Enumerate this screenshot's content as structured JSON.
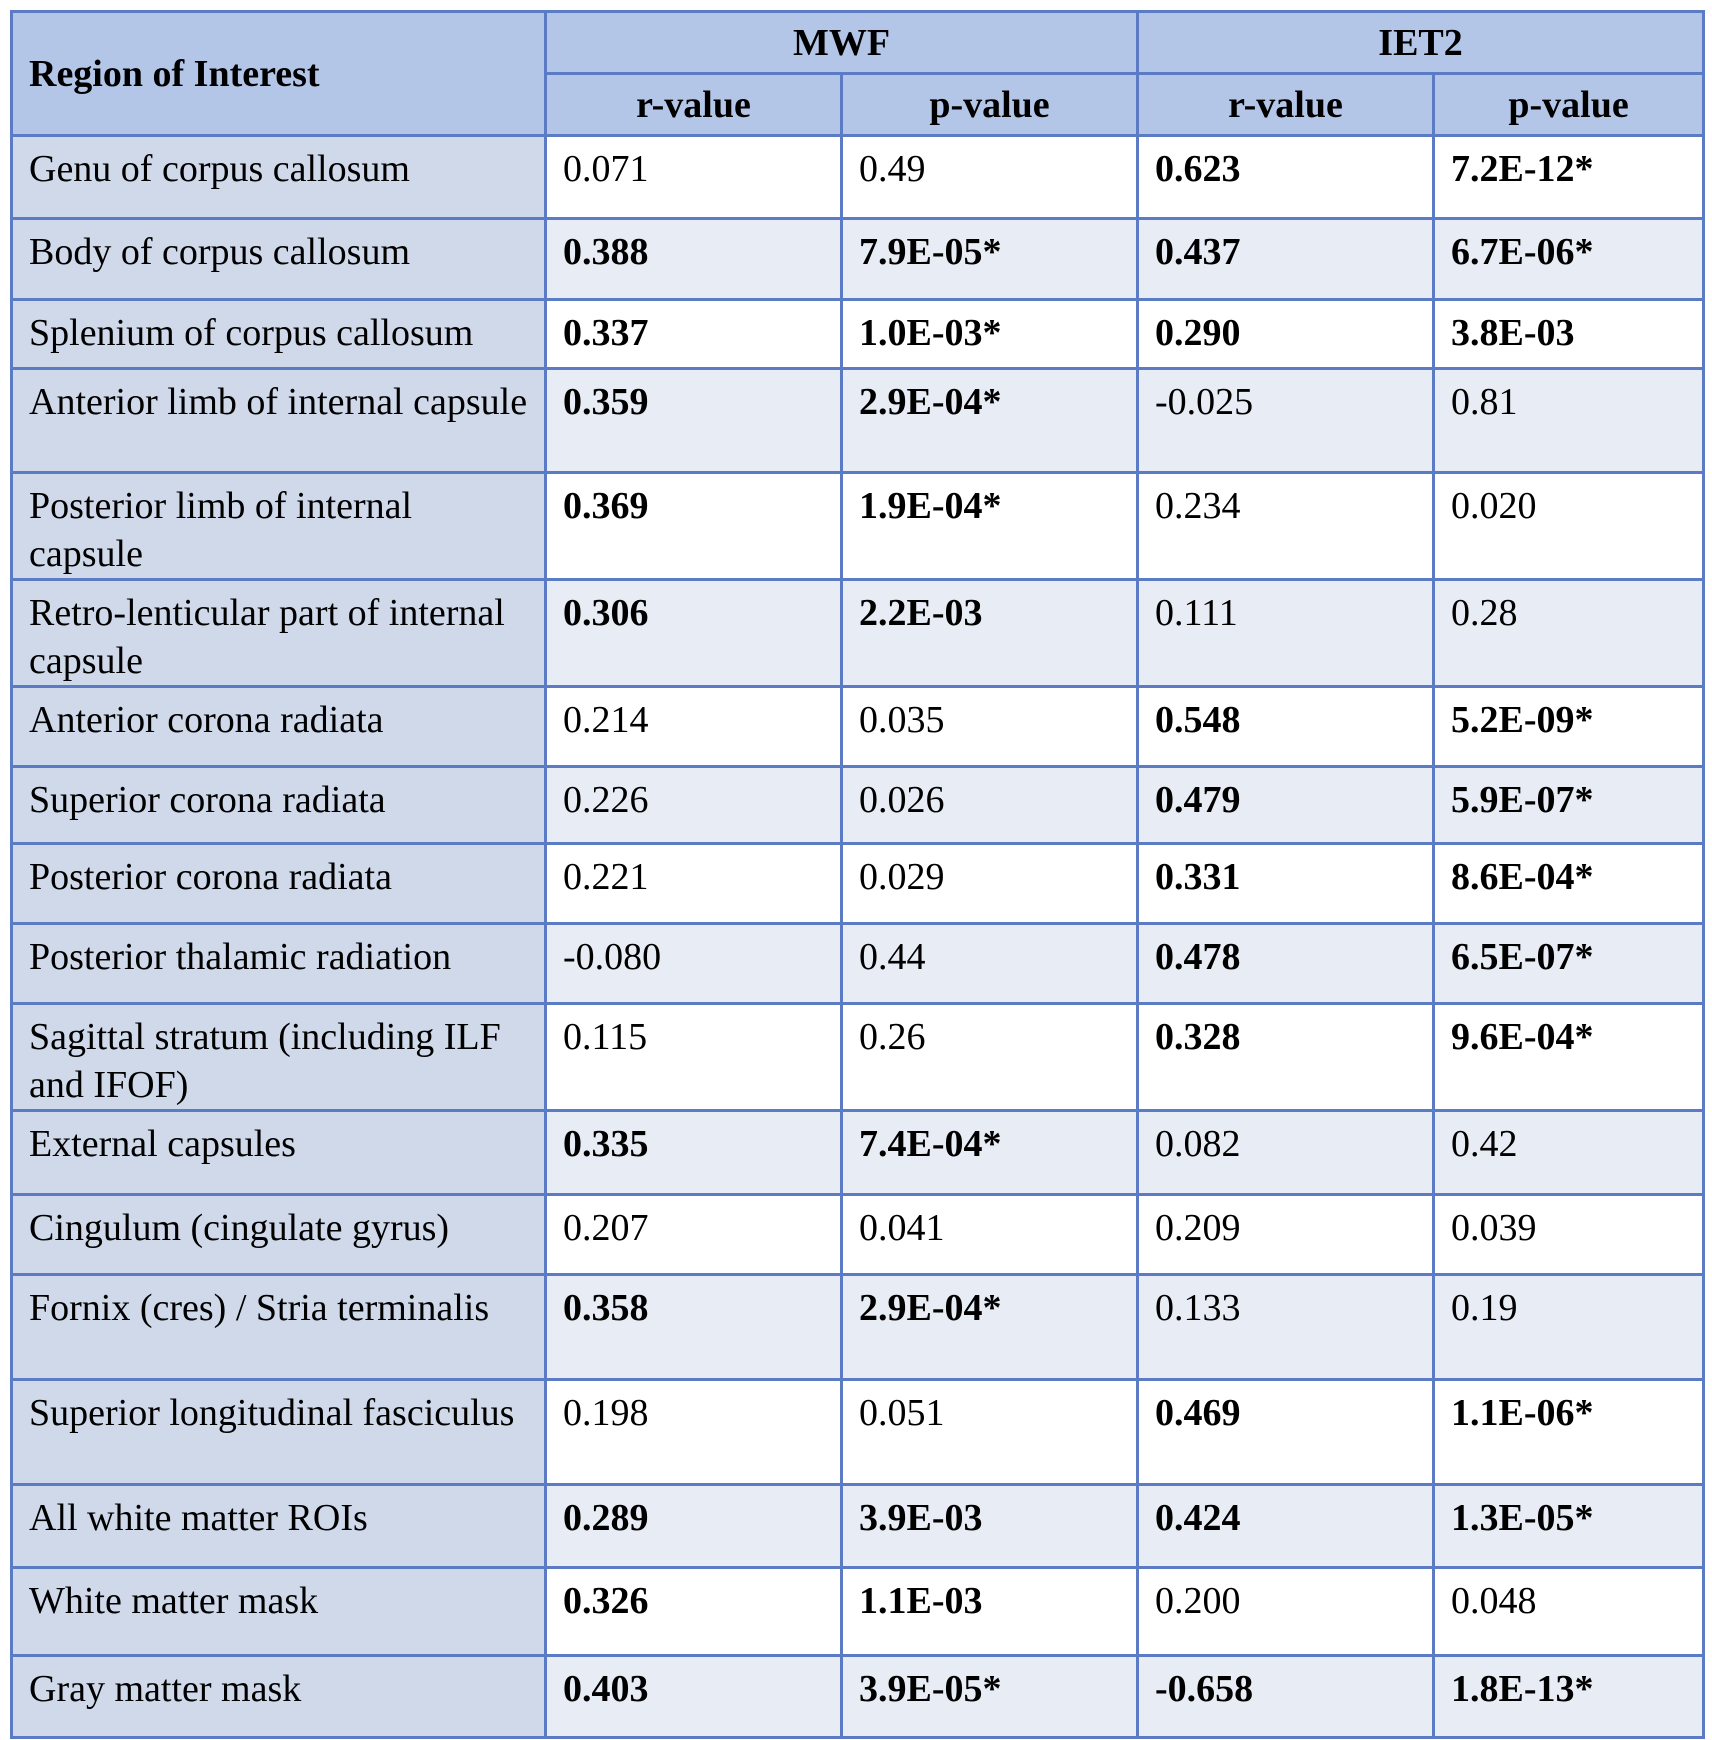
{
  "header": {
    "roi_label": "Region of Interest",
    "groups": [
      "MWF",
      "IET2"
    ],
    "subcols": [
      "r-value",
      "p-value",
      "r-value",
      "p-value"
    ]
  },
  "rows": [
    {
      "roi": "Genu of corpus callosum",
      "mwf_r": "0.071",
      "mwf_p": "0.49",
      "iet2_r": "0.623",
      "iet2_p": "7.2E-12*",
      "bold": [
        false,
        false,
        true,
        true
      ]
    },
    {
      "roi": "Body of corpus callosum",
      "mwf_r": "0.388",
      "mwf_p": "7.9E-05*",
      "iet2_r": "0.437",
      "iet2_p": "6.7E-06*",
      "bold": [
        true,
        true,
        true,
        true
      ]
    },
    {
      "roi": "Splenium of corpus callosum",
      "mwf_r": "0.337",
      "mwf_p": "1.0E-03*",
      "iet2_r": "0.290",
      "iet2_p": "3.8E-03",
      "bold": [
        true,
        true,
        true,
        true
      ]
    },
    {
      "roi": "Anterior limb of internal capsule",
      "mwf_r": "0.359",
      "mwf_p": "2.9E-04*",
      "iet2_r": "-0.025",
      "iet2_p": "0.81",
      "bold": [
        true,
        true,
        false,
        false
      ]
    },
    {
      "roi": "Posterior limb of internal capsule",
      "mwf_r": "0.369",
      "mwf_p": "1.9E-04*",
      "iet2_r": "0.234",
      "iet2_p": "0.020",
      "bold": [
        true,
        true,
        false,
        false
      ]
    },
    {
      "roi": "Retro-lenticular part of internal capsule",
      "mwf_r": "0.306",
      "mwf_p": "2.2E-03",
      "iet2_r": "0.111",
      "iet2_p": "0.28",
      "bold": [
        true,
        true,
        false,
        false
      ]
    },
    {
      "roi": "Anterior corona radiata",
      "mwf_r": "0.214",
      "mwf_p": "0.035",
      "iet2_r": "0.548",
      "iet2_p": "5.2E-09*",
      "bold": [
        false,
        false,
        true,
        true
      ]
    },
    {
      "roi": "Superior corona radiata",
      "mwf_r": "0.226",
      "mwf_p": "0.026",
      "iet2_r": "0.479",
      "iet2_p": "5.9E-07*",
      "bold": [
        false,
        false,
        true,
        true
      ]
    },
    {
      "roi": "Posterior corona radiata",
      "mwf_r": "0.221",
      "mwf_p": "0.029",
      "iet2_r": "0.331",
      "iet2_p": "8.6E-04*",
      "bold": [
        false,
        false,
        true,
        true
      ]
    },
    {
      "roi": "Posterior thalamic radiation",
      "mwf_r": "-0.080",
      "mwf_p": "0.44",
      "iet2_r": "0.478",
      "iet2_p": "6.5E-07*",
      "bold": [
        false,
        false,
        true,
        true
      ]
    },
    {
      "roi": "Sagittal stratum (including ILF and IFOF)",
      "mwf_r": "0.115",
      "mwf_p": "0.26",
      "iet2_r": "0.328",
      "iet2_p": "9.6E-04*",
      "bold": [
        false,
        false,
        true,
        true
      ]
    },
    {
      "roi": "External capsules",
      "mwf_r": "0.335",
      "mwf_p": "7.4E-04*",
      "iet2_r": "0.082",
      "iet2_p": "0.42",
      "bold": [
        true,
        true,
        false,
        false
      ]
    },
    {
      "roi": "Cingulum (cingulate gyrus)",
      "mwf_r": "0.207",
      "mwf_p": "0.041",
      "iet2_r": "0.209",
      "iet2_p": "0.039",
      "bold": [
        false,
        false,
        false,
        false
      ]
    },
    {
      "roi": "Fornix (cres) / Stria terminalis",
      "mwf_r": "0.358",
      "mwf_p": "2.9E-04*",
      "iet2_r": "0.133",
      "iet2_p": "0.19",
      "bold": [
        true,
        true,
        false,
        false
      ]
    },
    {
      "roi": "Superior longitudinal fasciculus",
      "mwf_r": "0.198",
      "mwf_p": "0.051",
      "iet2_r": "0.469",
      "iet2_p": "1.1E-06*",
      "bold": [
        false,
        false,
        true,
        true
      ]
    },
    {
      "roi": "All white matter ROIs",
      "mwf_r": "0.289",
      "mwf_p": "3.9E-03",
      "iet2_r": "0.424",
      "iet2_p": "1.3E-05*",
      "bold": [
        true,
        true,
        true,
        true
      ]
    },
    {
      "roi": "White matter mask",
      "mwf_r": "0.326",
      "mwf_p": "1.1E-03",
      "iet2_r": "0.200",
      "iet2_p": "0.048",
      "bold": [
        true,
        true,
        false,
        false
      ]
    },
    {
      "roi": "Gray matter mask",
      "mwf_r": "0.403",
      "mwf_p": "3.9E-05*",
      "iet2_r": "-0.658",
      "iet2_p": "1.8E-13*",
      "bold": [
        true,
        true,
        true,
        true
      ]
    }
  ]
}
